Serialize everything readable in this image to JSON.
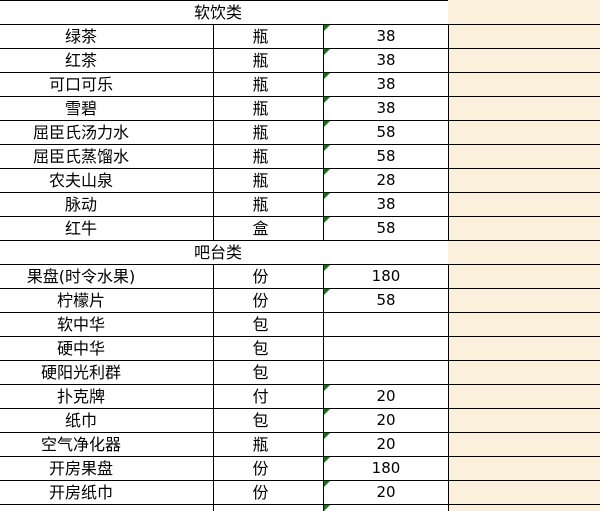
{
  "app": {
    "title": "drink-and-bar-price-list"
  },
  "colors": {
    "highlight_column": "#FAF0DC",
    "grid_border": "#000000",
    "error_indicator": "#107C10",
    "cell_background": "#FFFFFF",
    "text": "#000000"
  },
  "table": {
    "sections": [
      {
        "header": "软饮类",
        "rows": [
          {
            "name": "绿茶",
            "unit": "瓶",
            "price": "38"
          },
          {
            "name": "红茶",
            "unit": "瓶",
            "price": "38"
          },
          {
            "name": "可口可乐",
            "unit": "瓶",
            "price": "38"
          },
          {
            "name": "雪碧",
            "unit": "瓶",
            "price": "38"
          },
          {
            "name": "屈臣氏汤力水",
            "unit": "瓶",
            "price": "58"
          },
          {
            "name": "屈臣氏蒸馏水",
            "unit": "瓶",
            "price": "58"
          },
          {
            "name": "农夫山泉",
            "unit": "瓶",
            "price": "28"
          },
          {
            "name": "脉动",
            "unit": "瓶",
            "price": "38"
          },
          {
            "name": "红牛",
            "unit": "盒",
            "price": "58"
          }
        ]
      },
      {
        "header": "吧台类",
        "rows": [
          {
            "name": "果盘(时令水果)",
            "unit": "份",
            "price": "180"
          },
          {
            "name": "柠檬片",
            "unit": "份",
            "price": "58"
          },
          {
            "name": "软中华",
            "unit": "包",
            "price": ""
          },
          {
            "name": "硬中华",
            "unit": "包",
            "price": ""
          },
          {
            "name": "硬阳光利群",
            "unit": "包",
            "price": ""
          },
          {
            "name": "扑克牌",
            "unit": "付",
            "price": "20"
          },
          {
            "name": "纸巾",
            "unit": "包",
            "price": "20"
          },
          {
            "name": "空气净化器",
            "unit": "瓶",
            "price": "20"
          },
          {
            "name": "开房果盘",
            "unit": "份",
            "price": "180"
          },
          {
            "name": "开房纸巾",
            "unit": "份",
            "price": "20"
          }
        ]
      }
    ],
    "bottom_partial_row": {
      "visible": true,
      "has_error_indicator": true
    }
  }
}
